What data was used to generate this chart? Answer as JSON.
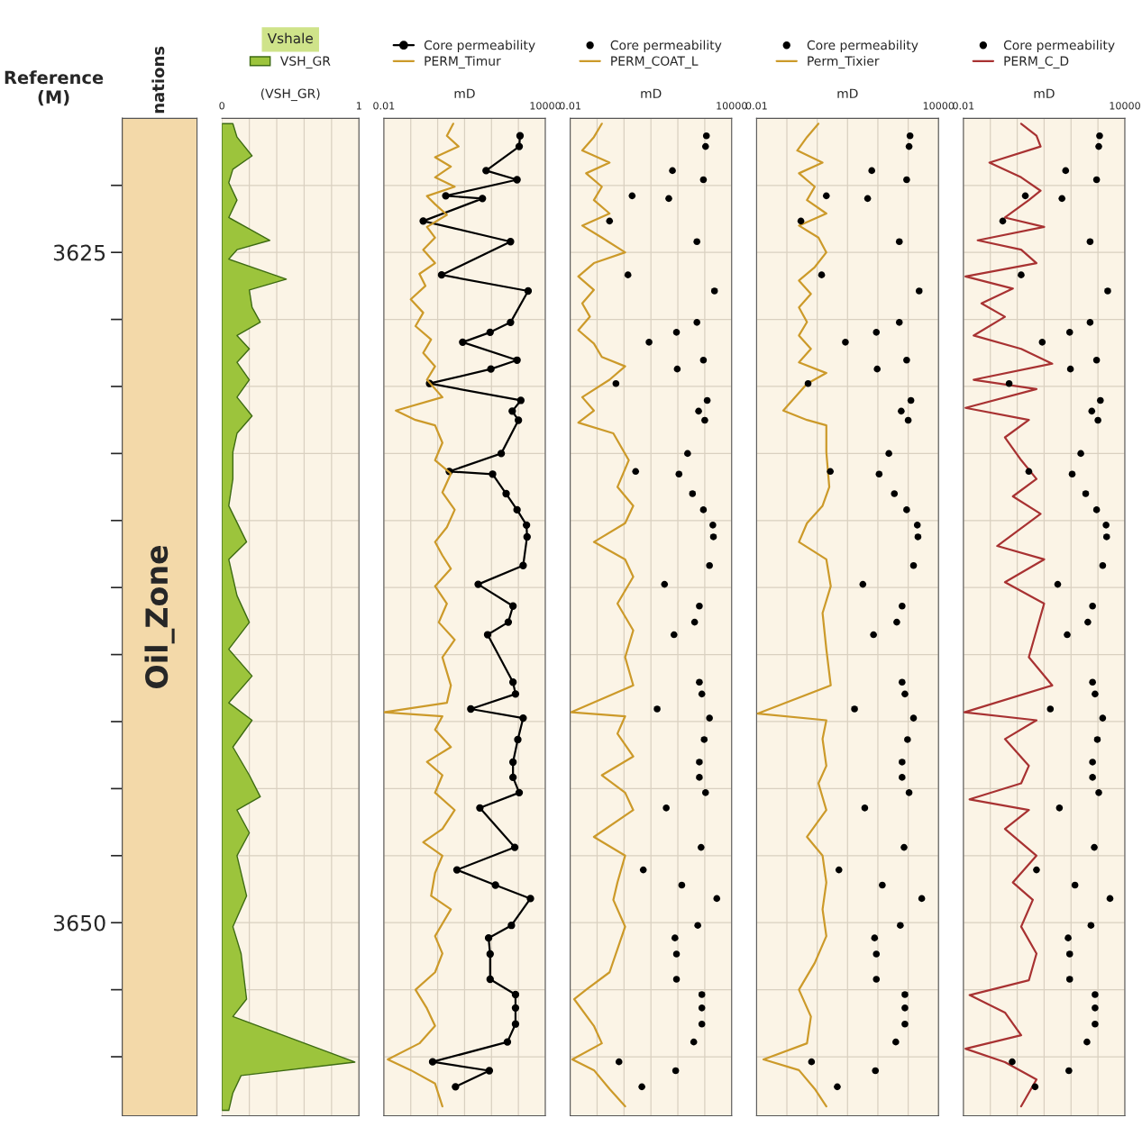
{
  "chart_data": [
    {
      "type": "other",
      "title": "nations",
      "annotations": [
        "Oil_Zone"
      ]
    },
    {
      "type": "area",
      "orientation": "horizontal",
      "title": "Vshale",
      "xlabel": "(VSH_GR)",
      "ylabel": "Reference (M)",
      "xlim": [
        0,
        1
      ],
      "xticks": [
        0,
        {
          "value": 0.2,
          "label": null
        },
        {
          "value": 0.4,
          "label": null
        },
        {
          "value": 0.6,
          "label": null
        },
        {
          "value": 0.8,
          "label": null
        },
        1
      ],
      "ylim": [
        3657.2,
        3620
      ],
      "yticks": [
        {
          "value": 3622.5,
          "label": null
        },
        3625,
        {
          "value": 3627.5,
          "label": null
        },
        {
          "value": 3630,
          "label": null
        },
        {
          "value": 3632.5,
          "label": null
        },
        {
          "value": 3635,
          "label": null
        },
        {
          "value": 3637.5,
          "label": null
        },
        {
          "value": 3640,
          "label": null
        },
        {
          "value": 3642.5,
          "label": null
        },
        {
          "value": 3645,
          "label": null
        },
        {
          "value": 3647.5,
          "label": null
        },
        3650,
        {
          "value": 3652.5,
          "label": null
        },
        {
          "value": 3655,
          "label": null
        }
      ],
      "grid": true,
      "legend": "top",
      "series": [
        {
          "name": "VSH_GR",
          "color": "#9cc43c",
          "x": [
            3620.2,
            3620.7,
            3621.4,
            3621.9,
            3622.4,
            3623.05,
            3623.7,
            3624.55,
            3624.9,
            3625.25,
            3626.0,
            3626.4,
            3627.05,
            3627.6,
            3628.1,
            3628.6,
            3629.1,
            3629.75,
            3630.4,
            3631.1,
            3631.75,
            3632.45,
            3633.45,
            3634.45,
            3635.8,
            3636.45,
            3637.8,
            3638.8,
            3639.8,
            3640.8,
            3641.8,
            3642.45,
            3643.45,
            3644.5,
            3645.3,
            3645.8,
            3646.65,
            3647.5,
            3649.0,
            3650.15,
            3651.15,
            3652.85,
            3653.5,
            3655.2,
            3655.7,
            3656.35,
            3657.0
          ],
          "values": [
            0.08,
            0.11,
            0.22,
            0.08,
            0.05,
            0.11,
            0.05,
            0.35,
            0.11,
            0.05,
            0.47,
            0.2,
            0.22,
            0.28,
            0.11,
            0.2,
            0.11,
            0.2,
            0.11,
            0.22,
            0.11,
            0.08,
            0.08,
            0.05,
            0.18,
            0.05,
            0.11,
            0.2,
            0.05,
            0.22,
            0.05,
            0.22,
            0.08,
            0.2,
            0.28,
            0.11,
            0.2,
            0.11,
            0.18,
            0.08,
            0.14,
            0.18,
            0.08,
            0.97,
            0.14,
            0.08,
            0.05
          ]
        }
      ]
    },
    {
      "type": "line",
      "orientation": "horizontal",
      "log": "x",
      "xlabel": "mD",
      "xlim": [
        0.01,
        10000
      ],
      "xticks": [
        0.01,
        {
          "value": 0.1,
          "label": null
        },
        {
          "value": 1,
          "label": null
        },
        {
          "value": 10,
          "label": null
        },
        {
          "value": 100,
          "label": null
        },
        {
          "value": 1000,
          "label": null
        },
        10000
      ],
      "ylim": [
        3657.2,
        3620
      ],
      "yticks": [
        3622.5,
        3625,
        3627.5,
        3630,
        3632.5,
        3635,
        3637.5,
        3640,
        3642.5,
        3645,
        3647.5,
        3650,
        3652.5,
        3655
      ],
      "tick_labels": "x",
      "grid": true,
      "legend": "top",
      "series": [
        {
          "name": "Core permeability",
          "type": "line",
          "marker": "circle",
          "color": "#000000",
          "x": [
            3620.65,
            3621.05,
            3621.95,
            3622.29,
            3622.89,
            3622.99,
            3623.83,
            3624.6,
            3625.84,
            3626.44,
            3627.61,
            3627.98,
            3628.35,
            3629.02,
            3629.35,
            3629.89,
            3630.52,
            3630.92,
            3631.26,
            3632.5,
            3633.17,
            3633.27,
            3634.0,
            3634.6,
            3635.17,
            3635.61,
            3636.68,
            3637.38,
            3638.19,
            3638.79,
            3639.26,
            3641.03,
            3641.47,
            3642.03,
            3642.37,
            3643.17,
            3644.01,
            3644.58,
            3645.15,
            3645.72,
            3647.19,
            3648.03,
            3648.6,
            3649.1,
            3650.1,
            3650.57,
            3651.17,
            3652.11,
            3652.68,
            3653.18,
            3653.78,
            3654.45,
            3655.19,
            3655.52,
            3656.12
          ],
          "values": [
            1150,
            1070,
            63,
            890,
            2.0,
            46,
            0.29,
            510,
            1.4,
            2300,
            510,
            89,
            8.5,
            890,
            95,
            0.5,
            1230,
            590,
            1000,
            230,
            2.7,
            110,
            350,
            890,
            2000,
            2100,
            1500,
            32,
            630,
            420,
            72,
            630,
            780,
            17,
            1500,
            950,
            630,
            630,
            1070,
            37,
            730,
            5.2,
            140,
            2800,
            550,
            78,
            89,
            89,
            780,
            780,
            780,
            390,
            0.65,
            83,
            4.6
          ]
        },
        {
          "name": "PERM_Timur",
          "color": "#cc9a2a",
          "x": [
            3620.2,
            3620.65,
            3621.05,
            3621.45,
            3621.8,
            3622.2,
            3622.55,
            3622.9,
            3623.2,
            3623.6,
            3624.05,
            3624.45,
            3624.9,
            3625.4,
            3625.8,
            3626.25,
            3626.75,
            3627.25,
            3627.75,
            3628.25,
            3628.75,
            3629.25,
            3629.75,
            3630.4,
            3630.9,
            3631.25,
            3631.45,
            3632.1,
            3632.75,
            3633.25,
            3633.95,
            3634.6,
            3635.25,
            3635.8,
            3636.3,
            3636.8,
            3637.45,
            3638.1,
            3638.8,
            3639.45,
            3640.1,
            3641.15,
            3641.8,
            3642.15,
            3642.3,
            3642.8,
            3643.45,
            3644.0,
            3644.5,
            3645.15,
            3645.8,
            3646.5,
            3647.0,
            3647.5,
            3648.15,
            3649.0,
            3649.5,
            3650.5,
            3651.15,
            3651.85,
            3652.5,
            3653.2,
            3653.85,
            3654.5,
            3655.1,
            3655.5,
            3656.0,
            3656.85
          ],
          "values": [
            3.8,
            2.2,
            6,
            0.8,
            3.1,
            0.8,
            4.3,
            0.4,
            0.8,
            2.2,
            0.4,
            0.8,
            0.29,
            0.8,
            0.21,
            0.35,
            0.1,
            0.29,
            0.15,
            0.57,
            0.29,
            0.8,
            0.4,
            1.5,
            0.028,
            0.15,
            0.8,
            1.5,
            0.8,
            3.1,
            1.5,
            4.3,
            2.2,
            0.8,
            1.5,
            3.1,
            0.8,
            2.2,
            1.1,
            4.3,
            1.5,
            3.1,
            2.2,
            0.01,
            1.5,
            0.8,
            3.1,
            0.4,
            1.5,
            0.8,
            4.3,
            1.5,
            0.29,
            1.5,
            0.8,
            0.57,
            3.1,
            0.8,
            1.5,
            0.8,
            0.15,
            0.4,
            0.8,
            0.21,
            0.014,
            0.1,
            0.8,
            1.5
          ]
        }
      ]
    },
    {
      "type": "line",
      "orientation": "horizontal",
      "log": "x",
      "xlabel": "mD",
      "xlim": [
        0.01,
        10000
      ],
      "xticks": [
        0.01,
        {
          "value": 0.1,
          "label": null
        },
        {
          "value": 1,
          "label": null
        },
        {
          "value": 10,
          "label": null
        },
        {
          "value": 100,
          "label": null
        },
        {
          "value": 1000,
          "label": null
        },
        10000
      ],
      "ylim": [
        3657.2,
        3620
      ],
      "yticks": [
        3622.5,
        3625,
        3627.5,
        3630,
        3632.5,
        3635,
        3637.5,
        3640,
        3642.5,
        3645,
        3647.5,
        3650,
        3652.5,
        3655
      ],
      "tick_labels": "x",
      "grid": true,
      "legend": "top",
      "series": [
        {
          "name": "Core permeability",
          "type": "scatter",
          "marker": "circle",
          "color": "#000000",
          "x": [
            3620.65,
            3621.05,
            3621.95,
            3622.29,
            3622.89,
            3622.99,
            3623.83,
            3624.6,
            3625.84,
            3626.44,
            3627.61,
            3627.98,
            3628.35,
            3629.02,
            3629.35,
            3629.89,
            3630.52,
            3630.92,
            3631.26,
            3632.5,
            3633.17,
            3633.27,
            3634.0,
            3634.6,
            3635.17,
            3635.61,
            3636.68,
            3637.38,
            3638.19,
            3638.79,
            3639.26,
            3641.03,
            3641.47,
            3642.03,
            3642.37,
            3643.17,
            3644.01,
            3644.58,
            3645.15,
            3645.72,
            3647.19,
            3648.03,
            3648.6,
            3649.1,
            3650.1,
            3650.57,
            3651.17,
            3652.11,
            3652.68,
            3653.18,
            3653.78,
            3654.45,
            3655.19,
            3655.52,
            3656.12
          ],
          "values": [
            1150,
            1070,
            63,
            890,
            2.0,
            46,
            0.29,
            510,
            1.4,
            2300,
            510,
            89,
            8.5,
            890,
            95,
            0.5,
            1230,
            590,
            1000,
            230,
            2.7,
            110,
            350,
            890,
            2000,
            2100,
            1500,
            32,
            630,
            420,
            72,
            630,
            780,
            17,
            1500,
            950,
            630,
            630,
            1070,
            37,
            730,
            5.2,
            140,
            2800,
            550,
            78,
            89,
            89,
            780,
            780,
            780,
            390,
            0.65,
            83,
            4.6
          ]
        },
        {
          "name": "PERM_COAT_L",
          "color": "#cc9a2a",
          "x": [
            3620.2,
            3620.7,
            3621.2,
            3621.65,
            3622.05,
            3622.55,
            3623.05,
            3623.55,
            3624.0,
            3624.45,
            3625.0,
            3625.4,
            3625.9,
            3626.4,
            3626.9,
            3627.4,
            3627.9,
            3628.4,
            3628.9,
            3629.25,
            3629.75,
            3630.4,
            3630.9,
            3631.35,
            3631.75,
            3632.75,
            3633.75,
            3634.45,
            3635.1,
            3635.8,
            3636.45,
            3637.1,
            3638.1,
            3639.1,
            3640.1,
            3641.15,
            3642.15,
            3642.3,
            3642.95,
            3643.8,
            3644.5,
            3645.15,
            3645.8,
            3646.8,
            3647.5,
            3648.5,
            3649.15,
            3650.15,
            3651.85,
            3652.5,
            3652.85,
            3653.85,
            3654.5,
            3655.1,
            3655.5,
            3656.2,
            3656.85
          ],
          "values": [
            0.15,
            0.076,
            0.028,
            0.29,
            0.039,
            0.15,
            0.076,
            0.29,
            0.028,
            0.15,
            1.1,
            0.076,
            0.02,
            0.076,
            0.028,
            0.054,
            0.02,
            0.076,
            0.15,
            1.1,
            0.29,
            0.028,
            0.076,
            0.02,
            0.4,
            1.5,
            0.57,
            2.2,
            1.1,
            0.076,
            1.1,
            2.2,
            0.57,
            2.2,
            1.1,
            2.2,
            0.011,
            1.1,
            0.57,
            2.2,
            0.15,
            1.1,
            2.2,
            0.076,
            1.1,
            0.57,
            0.4,
            1.1,
            0.29,
            0.039,
            0.014,
            0.076,
            0.15,
            0.012,
            0.076,
            0.29,
            1.1
          ]
        }
      ]
    },
    {
      "type": "line",
      "orientation": "horizontal",
      "log": "x",
      "xlabel": "mD",
      "xlim": [
        0.01,
        10000
      ],
      "xticks": [
        0.01,
        {
          "value": 0.1,
          "label": null
        },
        {
          "value": 1,
          "label": null
        },
        {
          "value": 10,
          "label": null
        },
        {
          "value": 100,
          "label": null
        },
        {
          "value": 1000,
          "label": null
        },
        10000
      ],
      "ylim": [
        3657.2,
        3620
      ],
      "yticks": [
        3622.5,
        3625,
        3627.5,
        3630,
        3632.5,
        3635,
        3637.5,
        3640,
        3642.5,
        3645,
        3647.5,
        3650,
        3652.5,
        3655
      ],
      "tick_labels": "x",
      "grid": true,
      "legend": "top",
      "series": [
        {
          "name": "Core permeability",
          "type": "scatter",
          "marker": "circle",
          "color": "#000000",
          "x": [
            3620.65,
            3621.05,
            3621.95,
            3622.29,
            3622.89,
            3622.99,
            3623.83,
            3624.6,
            3625.84,
            3626.44,
            3627.61,
            3627.98,
            3628.35,
            3629.02,
            3629.35,
            3629.89,
            3630.52,
            3630.92,
            3631.26,
            3632.5,
            3633.17,
            3633.27,
            3634.0,
            3634.6,
            3635.17,
            3635.61,
            3636.68,
            3637.38,
            3638.19,
            3638.79,
            3639.26,
            3641.03,
            3641.47,
            3642.03,
            3642.37,
            3643.17,
            3644.01,
            3644.58,
            3645.15,
            3645.72,
            3647.19,
            3648.03,
            3648.6,
            3649.1,
            3650.1,
            3650.57,
            3651.17,
            3652.11,
            3652.68,
            3653.18,
            3653.78,
            3654.45,
            3655.19,
            3655.52,
            3656.12
          ],
          "values": [
            1150,
            1070,
            63,
            890,
            2.0,
            46,
            0.29,
            510,
            1.4,
            2300,
            510,
            89,
            8.5,
            890,
            95,
            0.5,
            1230,
            590,
            1000,
            230,
            2.7,
            110,
            350,
            890,
            2000,
            2100,
            1500,
            32,
            630,
            420,
            72,
            630,
            780,
            17,
            1500,
            950,
            630,
            630,
            1070,
            37,
            730,
            5.2,
            140,
            2800,
            550,
            78,
            89,
            89,
            780,
            780,
            780,
            390,
            0.65,
            83,
            4.6
          ]
        },
        {
          "name": "Perm_Tixier",
          "color": "#cc9a2a",
          "x": [
            3620.2,
            3620.7,
            3621.2,
            3621.65,
            3622.05,
            3622.55,
            3623.05,
            3623.55,
            3624.0,
            3624.45,
            3625.0,
            3625.55,
            3626.05,
            3626.55,
            3627.05,
            3627.6,
            3628.1,
            3628.6,
            3629.1,
            3629.5,
            3629.9,
            3630.9,
            3631.25,
            3631.45,
            3632.45,
            3633.75,
            3634.45,
            3635.1,
            3635.8,
            3636.45,
            3637.45,
            3638.45,
            3639.8,
            3641.15,
            3642.2,
            3642.45,
            3643.15,
            3644.15,
            3644.8,
            3645.8,
            3646.8,
            3647.5,
            3648.5,
            3649.5,
            3650.5,
            3651.5,
            3652.5,
            3653.5,
            3654.5,
            3655.1,
            3655.5,
            3656.2,
            3656.85
          ],
          "values": [
            1.1,
            0.46,
            0.22,
            1.5,
            0.25,
            0.83,
            0.46,
            2.0,
            0.25,
            1.1,
            2.0,
            0.83,
            0.25,
            0.62,
            0.25,
            0.46,
            0.25,
            0.62,
            0.25,
            2.0,
            0.46,
            0.076,
            0.46,
            2.0,
            2.0,
            2.5,
            1.5,
            0.46,
            0.25,
            2.0,
            2.8,
            1.5,
            2.0,
            2.8,
            0.011,
            2.0,
            1.5,
            2.0,
            1.1,
            2.0,
            0.46,
            1.5,
            2.0,
            1.5,
            2.0,
            0.83,
            0.25,
            0.62,
            0.46,
            0.017,
            0.25,
            0.83,
            2.0
          ]
        }
      ]
    },
    {
      "type": "line",
      "orientation": "horizontal",
      "log": "x",
      "xlabel": "mD",
      "xlim": [
        0.01,
        10000
      ],
      "xticks": [
        0.01,
        {
          "value": 0.1,
          "label": null
        },
        {
          "value": 1,
          "label": null
        },
        {
          "value": 10,
          "label": null
        },
        {
          "value": 100,
          "label": null
        },
        {
          "value": 1000,
          "label": null
        },
        10000
      ],
      "ylim": [
        3657.2,
        3620
      ],
      "yticks": [
        3622.5,
        3625,
        3627.5,
        3630,
        3632.5,
        3635,
        3637.5,
        3640,
        3642.5,
        3645,
        3647.5,
        3650,
        3652.5,
        3655
      ],
      "tick_labels": "x",
      "grid": true,
      "legend": "top",
      "series": [
        {
          "name": "Core permeability",
          "type": "scatter",
          "marker": "circle",
          "color": "#000000",
          "x": [
            3620.65,
            3621.05,
            3621.95,
            3622.29,
            3622.89,
            3622.99,
            3623.83,
            3624.6,
            3625.84,
            3626.44,
            3627.61,
            3627.98,
            3628.35,
            3629.02,
            3629.35,
            3629.89,
            3630.52,
            3630.92,
            3631.26,
            3632.5,
            3633.17,
            3633.27,
            3634.0,
            3634.6,
            3635.17,
            3635.61,
            3636.68,
            3637.38,
            3638.19,
            3638.79,
            3639.26,
            3641.03,
            3641.47,
            3642.03,
            3642.37,
            3643.17,
            3644.01,
            3644.58,
            3645.15,
            3645.72,
            3647.19,
            3648.03,
            3648.6,
            3649.1,
            3650.1,
            3650.57,
            3651.17,
            3652.11,
            3652.68,
            3653.18,
            3653.78,
            3654.45,
            3655.19,
            3655.52,
            3656.12
          ],
          "values": [
            1150,
            1070,
            63,
            890,
            2.0,
            46,
            0.29,
            510,
            1.4,
            2300,
            510,
            89,
            8.5,
            890,
            95,
            0.5,
            1230,
            590,
            1000,
            230,
            2.7,
            110,
            350,
            890,
            2000,
            2100,
            1500,
            32,
            630,
            420,
            72,
            630,
            780,
            17,
            1500,
            950,
            630,
            630,
            1070,
            37,
            730,
            5.2,
            140,
            2800,
            550,
            78,
            89,
            89,
            780,
            780,
            780,
            390,
            0.65,
            83,
            4.6
          ]
        },
        {
          "name": "PERM_C_D",
          "color": "#a83232",
          "x": [
            3620.2,
            3620.65,
            3621.05,
            3621.65,
            3622.2,
            3622.7,
            3623.05,
            3623.7,
            3624.05,
            3624.55,
            3624.9,
            3625.4,
            3625.9,
            3626.35,
            3626.9,
            3627.4,
            3628.1,
            3628.6,
            3629.15,
            3629.75,
            3630.1,
            3630.8,
            3631.25,
            3631.9,
            3632.75,
            3633.45,
            3634.1,
            3634.75,
            3635.95,
            3636.45,
            3637.3,
            3638.1,
            3639.1,
            3640.1,
            3641.15,
            3642.15,
            3642.45,
            3643.15,
            3644.15,
            3644.8,
            3645.4,
            3645.8,
            3646.5,
            3647.5,
            3648.5,
            3649.15,
            3650.15,
            3651.15,
            3652.15,
            3652.7,
            3653.35,
            3654.2,
            3654.7,
            3655.2,
            3655.85,
            3656.85
          ],
          "values": [
            1.4,
            5.2,
            7.4,
            0.093,
            1.4,
            7.4,
            2.7,
            0.35,
            10,
            0.034,
            1.4,
            5.2,
            0.012,
            0.69,
            0.047,
            0.35,
            0.024,
            1.4,
            20,
            0.024,
            5.2,
            0.012,
            2.7,
            0.35,
            1.4,
            5.2,
            0.69,
            7.4,
            0.18,
            10,
            0.35,
            10,
            5.2,
            2.7,
            20,
            0.011,
            5.2,
            0.35,
            2.7,
            1.4,
            0.017,
            2.7,
            0.35,
            5.2,
            0.69,
            3.8,
            1.4,
            5.2,
            2.7,
            0.017,
            0.35,
            1.4,
            0.012,
            0.35,
            5.2,
            1.4
          ]
        }
      ]
    }
  ]
}
